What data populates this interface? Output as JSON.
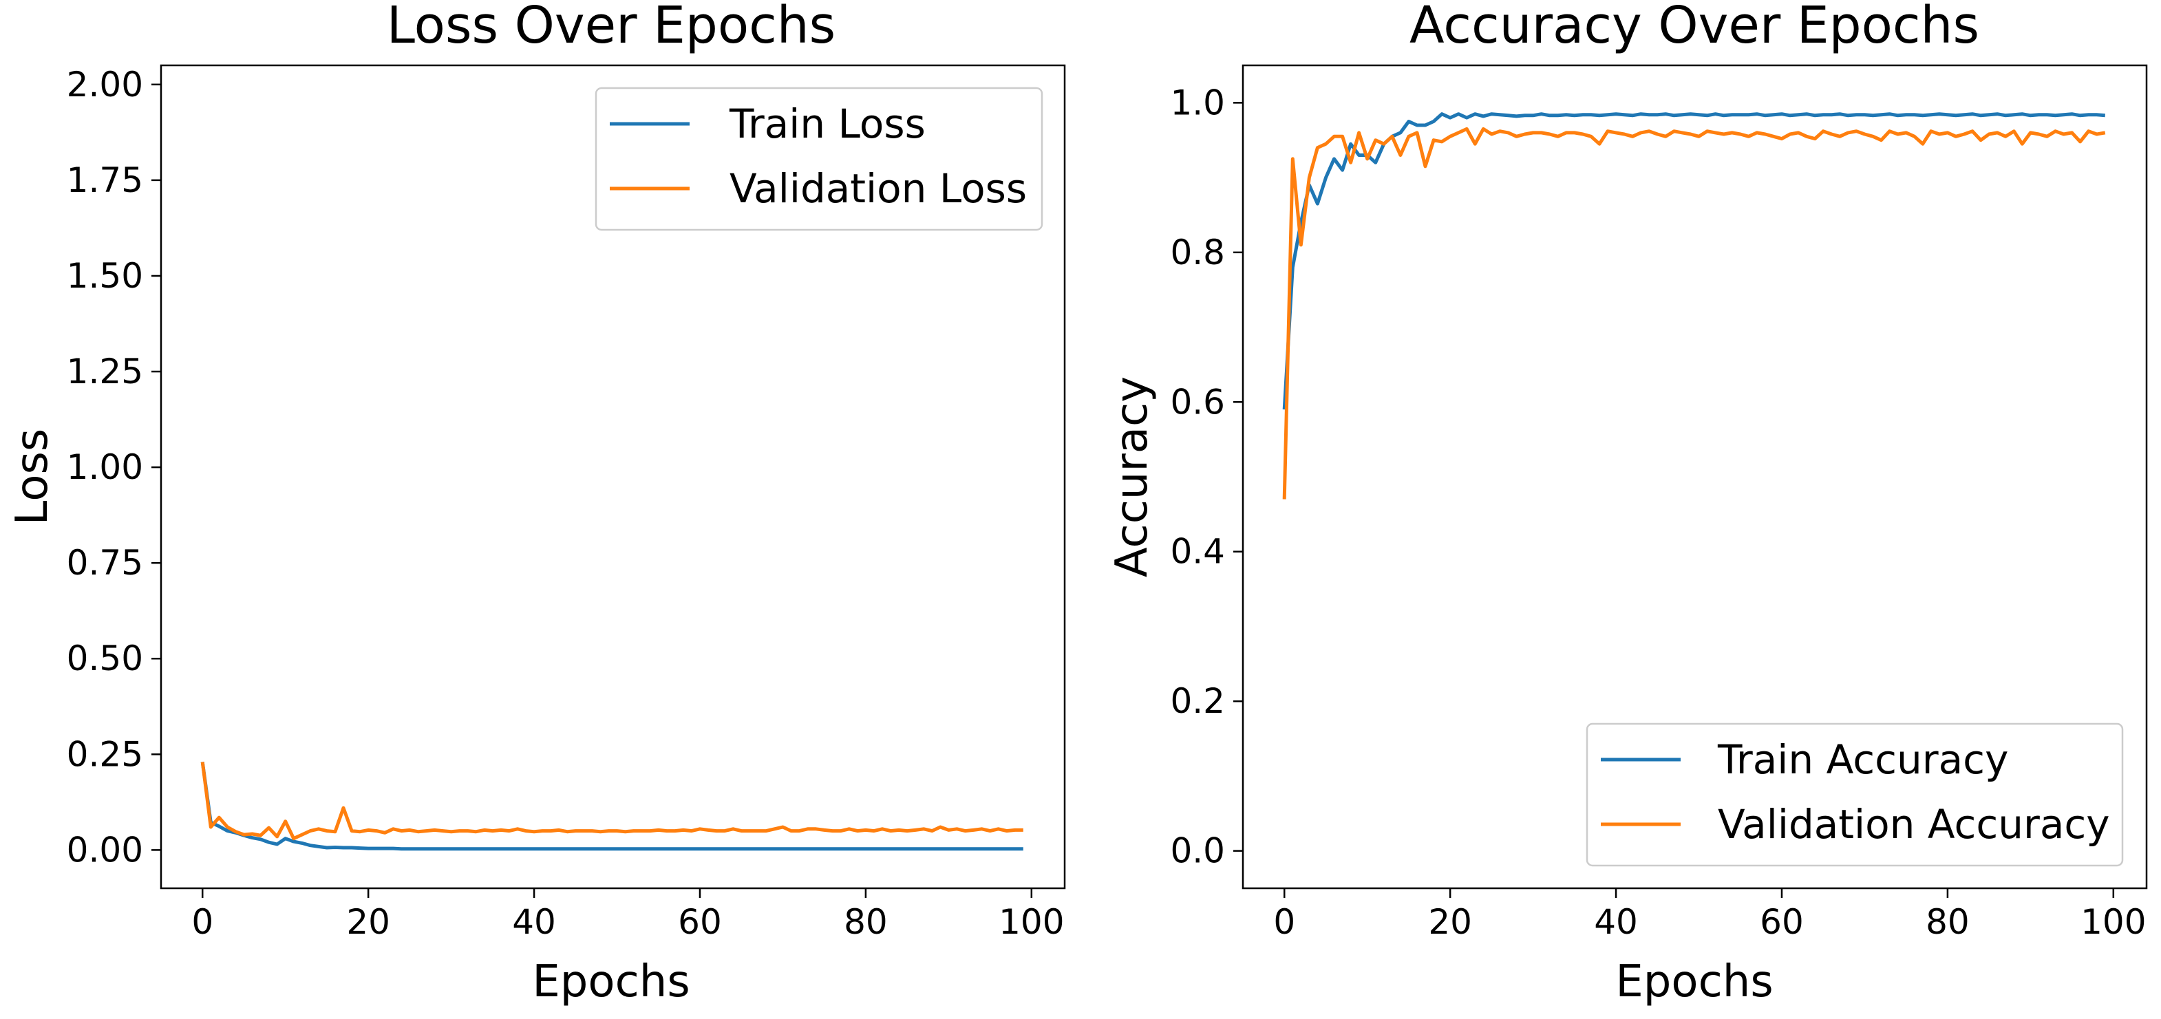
{
  "chart_data": [
    {
      "type": "line",
      "title": "Loss Over Epochs",
      "xlabel": "Epochs",
      "ylabel": "Loss",
      "xlim": [
        -5,
        104
      ],
      "ylim": [
        -0.1,
        2.05
      ],
      "xticks": [
        0,
        20,
        40,
        60,
        80,
        100
      ],
      "xtick_labels": [
        "0",
        "20",
        "40",
        "60",
        "80",
        "100"
      ],
      "yticks": [
        0.0,
        0.25,
        0.5,
        0.75,
        1.0,
        1.25,
        1.5,
        1.75,
        2.0
      ],
      "ytick_labels": [
        "0.00",
        "0.25",
        "0.50",
        "0.75",
        "1.00",
        "1.25",
        "1.50",
        "1.75",
        "2.00"
      ],
      "grid": false,
      "legend_position": "top-right",
      "series": [
        {
          "name": "Train Loss",
          "color": "#1f77b4",
          "x": [
            0,
            1,
            2,
            3,
            4,
            5,
            6,
            7,
            8,
            9,
            10,
            11,
            12,
            13,
            14,
            15,
            16,
            17,
            18,
            19,
            20,
            21,
            22,
            23,
            24,
            25,
            26,
            27,
            28,
            29,
            30,
            31,
            32,
            33,
            34,
            35,
            36,
            37,
            38,
            39,
            40,
            41,
            42,
            43,
            44,
            45,
            46,
            47,
            48,
            49,
            50,
            51,
            52,
            53,
            54,
            55,
            56,
            57,
            58,
            59,
            60,
            61,
            62,
            63,
            64,
            65,
            66,
            67,
            68,
            69,
            70,
            71,
            72,
            73,
            74,
            75,
            76,
            77,
            78,
            79,
            80,
            81,
            82,
            83,
            84,
            85,
            86,
            87,
            88,
            89,
            90,
            91,
            92,
            93,
            94,
            95,
            96,
            97,
            98,
            99
          ],
          "values": [
            0.23,
            0.072,
            0.062,
            0.05,
            0.045,
            0.038,
            0.032,
            0.028,
            0.02,
            0.015,
            0.03,
            0.022,
            0.018,
            0.012,
            0.009,
            0.006,
            0.007,
            0.006,
            0.006,
            0.005,
            0.004,
            0.004,
            0.004,
            0.004,
            0.003,
            0.003,
            0.003,
            0.003,
            0.003,
            0.003,
            0.003,
            0.003,
            0.003,
            0.003,
            0.003,
            0.003,
            0.003,
            0.003,
            0.003,
            0.003,
            0.003,
            0.003,
            0.003,
            0.003,
            0.003,
            0.003,
            0.003,
            0.003,
            0.003,
            0.003,
            0.003,
            0.003,
            0.003,
            0.003,
            0.003,
            0.003,
            0.003,
            0.003,
            0.003,
            0.003,
            0.003,
            0.003,
            0.003,
            0.003,
            0.003,
            0.003,
            0.003,
            0.003,
            0.003,
            0.003,
            0.003,
            0.003,
            0.003,
            0.003,
            0.003,
            0.003,
            0.003,
            0.003,
            0.003,
            0.003,
            0.003,
            0.003,
            0.003,
            0.003,
            0.003,
            0.003,
            0.003,
            0.003,
            0.003,
            0.003,
            0.003,
            0.003,
            0.003,
            0.003,
            0.003,
            0.003,
            0.003,
            0.003,
            0.003,
            0.003
          ]
        },
        {
          "name": "Validation Loss",
          "color": "#ff7f0e",
          "x": [
            0,
            1,
            2,
            3,
            4,
            5,
            6,
            7,
            8,
            9,
            10,
            11,
            12,
            13,
            14,
            15,
            16,
            17,
            18,
            19,
            20,
            21,
            22,
            23,
            24,
            25,
            26,
            27,
            28,
            29,
            30,
            31,
            32,
            33,
            34,
            35,
            36,
            37,
            38,
            39,
            40,
            41,
            42,
            43,
            44,
            45,
            46,
            47,
            48,
            49,
            50,
            51,
            52,
            53,
            54,
            55,
            56,
            57,
            58,
            59,
            60,
            61,
            62,
            63,
            64,
            65,
            66,
            67,
            68,
            69,
            70,
            71,
            72,
            73,
            74,
            75,
            76,
            77,
            78,
            79,
            80,
            81,
            82,
            83,
            84,
            85,
            86,
            87,
            88,
            89,
            90,
            91,
            92,
            93,
            94,
            95,
            96,
            97,
            98,
            99
          ],
          "values": [
            0.23,
            0.06,
            0.085,
            0.06,
            0.048,
            0.04,
            0.042,
            0.038,
            0.058,
            0.035,
            0.075,
            0.03,
            0.04,
            0.05,
            0.055,
            0.05,
            0.048,
            0.11,
            0.05,
            0.048,
            0.052,
            0.05,
            0.045,
            0.055,
            0.05,
            0.052,
            0.048,
            0.05,
            0.052,
            0.05,
            0.048,
            0.05,
            0.05,
            0.048,
            0.052,
            0.05,
            0.052,
            0.05,
            0.055,
            0.05,
            0.048,
            0.05,
            0.05,
            0.052,
            0.048,
            0.05,
            0.05,
            0.05,
            0.048,
            0.05,
            0.05,
            0.048,
            0.05,
            0.05,
            0.05,
            0.052,
            0.05,
            0.05,
            0.052,
            0.05,
            0.055,
            0.052,
            0.05,
            0.05,
            0.055,
            0.05,
            0.05,
            0.05,
            0.05,
            0.055,
            0.06,
            0.05,
            0.05,
            0.055,
            0.055,
            0.052,
            0.05,
            0.05,
            0.055,
            0.05,
            0.052,
            0.05,
            0.055,
            0.05,
            0.052,
            0.05,
            0.052,
            0.055,
            0.05,
            0.06,
            0.052,
            0.055,
            0.05,
            0.052,
            0.055,
            0.05,
            0.055,
            0.05,
            0.052,
            0.052
          ]
        }
      ]
    },
    {
      "type": "line",
      "title": "Accuracy Over Epochs",
      "xlabel": "Epochs",
      "ylabel": "Accuracy",
      "xlim": [
        -5,
        104
      ],
      "ylim": [
        -0.05,
        1.05
      ],
      "xticks": [
        0,
        20,
        40,
        60,
        80,
        100
      ],
      "xtick_labels": [
        "0",
        "20",
        "40",
        "60",
        "80",
        "100"
      ],
      "yticks": [
        0.0,
        0.2,
        0.4,
        0.6,
        0.8,
        1.0
      ],
      "ytick_labels": [
        "0.0",
        "0.2",
        "0.4",
        "0.6",
        "0.8",
        "1.0"
      ],
      "grid": false,
      "legend_position": "bottom-right",
      "series": [
        {
          "name": "Train Accuracy",
          "color": "#1f77b4",
          "x": [
            0,
            1,
            2,
            3,
            4,
            5,
            6,
            7,
            8,
            9,
            10,
            11,
            12,
            13,
            14,
            15,
            16,
            17,
            18,
            19,
            20,
            21,
            22,
            23,
            24,
            25,
            26,
            27,
            28,
            29,
            30,
            31,
            32,
            33,
            34,
            35,
            36,
            37,
            38,
            39,
            40,
            41,
            42,
            43,
            44,
            45,
            46,
            47,
            48,
            49,
            50,
            51,
            52,
            53,
            54,
            55,
            56,
            57,
            58,
            59,
            60,
            61,
            62,
            63,
            64,
            65,
            66,
            67,
            68,
            69,
            70,
            71,
            72,
            73,
            74,
            75,
            76,
            77,
            78,
            79,
            80,
            81,
            82,
            83,
            84,
            85,
            86,
            87,
            88,
            89,
            90,
            91,
            92,
            93,
            94,
            95,
            96,
            97,
            98,
            99
          ],
          "values": [
            0.59,
            0.78,
            0.84,
            0.89,
            0.865,
            0.9,
            0.925,
            0.91,
            0.945,
            0.93,
            0.93,
            0.92,
            0.945,
            0.955,
            0.96,
            0.975,
            0.97,
            0.97,
            0.975,
            0.985,
            0.98,
            0.985,
            0.98,
            0.985,
            0.982,
            0.985,
            0.984,
            0.983,
            0.982,
            0.983,
            0.983,
            0.985,
            0.983,
            0.983,
            0.984,
            0.983,
            0.984,
            0.984,
            0.983,
            0.984,
            0.985,
            0.984,
            0.983,
            0.985,
            0.984,
            0.984,
            0.985,
            0.983,
            0.984,
            0.985,
            0.984,
            0.983,
            0.985,
            0.983,
            0.984,
            0.984,
            0.984,
            0.985,
            0.983,
            0.984,
            0.985,
            0.983,
            0.984,
            0.985,
            0.983,
            0.984,
            0.984,
            0.985,
            0.983,
            0.984,
            0.984,
            0.983,
            0.984,
            0.985,
            0.983,
            0.984,
            0.984,
            0.983,
            0.984,
            0.985,
            0.984,
            0.983,
            0.984,
            0.985,
            0.983,
            0.984,
            0.985,
            0.983,
            0.984,
            0.985,
            0.983,
            0.984,
            0.984,
            0.983,
            0.984,
            0.985,
            0.983,
            0.984,
            0.984,
            0.983
          ]
        },
        {
          "name": "Validation Accuracy",
          "color": "#ff7f0e",
          "x": [
            0,
            1,
            2,
            3,
            4,
            5,
            6,
            7,
            8,
            9,
            10,
            11,
            12,
            13,
            14,
            15,
            16,
            17,
            18,
            19,
            20,
            21,
            22,
            23,
            24,
            25,
            26,
            27,
            28,
            29,
            30,
            31,
            32,
            33,
            34,
            35,
            36,
            37,
            38,
            39,
            40,
            41,
            42,
            43,
            44,
            45,
            46,
            47,
            48,
            49,
            50,
            51,
            52,
            53,
            54,
            55,
            56,
            57,
            58,
            59,
            60,
            61,
            62,
            63,
            64,
            65,
            66,
            67,
            68,
            69,
            70,
            71,
            72,
            73,
            74,
            75,
            76,
            77,
            78,
            79,
            80,
            81,
            82,
            83,
            84,
            85,
            86,
            87,
            88,
            89,
            90,
            91,
            92,
            93,
            94,
            95,
            96,
            97,
            98,
            99
          ],
          "values": [
            0.47,
            0.925,
            0.81,
            0.9,
            0.94,
            0.945,
            0.955,
            0.955,
            0.92,
            0.96,
            0.925,
            0.95,
            0.945,
            0.955,
            0.93,
            0.955,
            0.96,
            0.915,
            0.95,
            0.948,
            0.955,
            0.96,
            0.965,
            0.945,
            0.965,
            0.958,
            0.962,
            0.96,
            0.955,
            0.958,
            0.96,
            0.96,
            0.958,
            0.955,
            0.96,
            0.96,
            0.958,
            0.955,
            0.945,
            0.962,
            0.96,
            0.958,
            0.955,
            0.96,
            0.962,
            0.958,
            0.955,
            0.962,
            0.96,
            0.958,
            0.955,
            0.962,
            0.96,
            0.958,
            0.96,
            0.958,
            0.955,
            0.96,
            0.958,
            0.955,
            0.952,
            0.958,
            0.96,
            0.955,
            0.952,
            0.962,
            0.958,
            0.955,
            0.96,
            0.962,
            0.958,
            0.955,
            0.95,
            0.962,
            0.958,
            0.96,
            0.955,
            0.945,
            0.962,
            0.958,
            0.96,
            0.955,
            0.958,
            0.962,
            0.95,
            0.958,
            0.96,
            0.955,
            0.962,
            0.945,
            0.96,
            0.958,
            0.955,
            0.962,
            0.958,
            0.96,
            0.948,
            0.962,
            0.958,
            0.96
          ]
        }
      ]
    }
  ]
}
